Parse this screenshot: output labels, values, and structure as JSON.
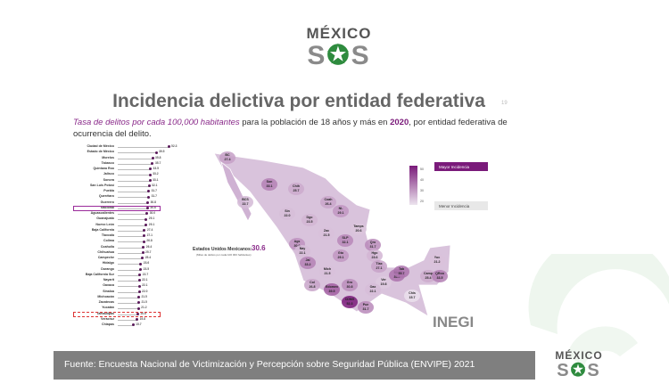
{
  "logo": {
    "top_text": "MÉXICO",
    "mark": "SOS",
    "colors": {
      "gray": "#8a8a8a",
      "green": "#2e8b3e"
    }
  },
  "slide": {
    "title": "Incidencia delictiva por entidad federativa",
    "page_number": "19",
    "subtitle_italic": "Tasa de delitos por cada 100,000 habitantes",
    "subtitle_mid": " para la población de 18 años y más en ",
    "subtitle_year": "2020",
    "subtitle_end": ", por entidad federativa de ocurrencia del delito."
  },
  "chart_data": [
    {
      "type": "dot",
      "categories": [
        "Ciudad de México",
        "Estado de México",
        "Morelos",
        "Tabasco",
        "Quintana Roo",
        "Jalisco",
        "Sonora",
        "San Luis Potosí",
        "Puebla",
        "Querétaro",
        "Guerrero",
        "Nacional",
        "Aguascalientes",
        "Guanajuato",
        "Nuevo León",
        "Baja California",
        "Tlaxcala",
        "Colima",
        "Coahuila",
        "Chihuahua",
        "Campeche",
        "Hidalgo",
        "Durango",
        "Baja California Sur",
        "Nayarit",
        "Oaxaca",
        "Sinaloa",
        "Michoacán",
        "Zacatecas",
        "Yucatán",
        "Tamaulipas",
        "Veracruz",
        "Chiapas"
      ],
      "values": [
        52.3,
        39.5,
        35.8,
        35.7,
        33.5,
        33.2,
        33.1,
        32.1,
        31.7,
        31.7,
        30.8,
        30.6,
        30.0,
        29.1,
        29.1,
        27.4,
        27.1,
        26.8,
        26.4,
        25.7,
        25.4,
        23.6,
        23.5,
        22.7,
        22.1,
        22.1,
        22.0,
        21.5,
        21.5,
        21.2,
        20.6,
        19.8,
        15.7
      ],
      "highlighted": [
        "Nacional",
        "Tamaulipas"
      ],
      "xlim": [
        0,
        55
      ]
    },
    {
      "type": "choropleth",
      "national_label": "Estados Unidos Mexicanos:",
      "national_value": "30.6",
      "national_note": "(Miles de delitos por cada 100 000 habitantes)",
      "legend": {
        "max_label": "Mayor Incidencia",
        "min_label": "Menor Incidencia",
        "ticks": [
          "50",
          "40",
          "30",
          "20"
        ],
        "colors": {
          "high": "#7a1a7a",
          "low": "#ece4ee"
        }
      },
      "states": [
        {
          "abbr": "BC",
          "value": "27.4"
        },
        {
          "abbr": "BCS",
          "value": "22.7"
        },
        {
          "abbr": "Son",
          "value": "33.1"
        },
        {
          "abbr": "Chih",
          "value": "25.7"
        },
        {
          "abbr": "Coah",
          "value": "26.4"
        },
        {
          "abbr": "NL",
          "value": "29.1"
        },
        {
          "abbr": "Sin",
          "value": "22.0"
        },
        {
          "abbr": "Dgo",
          "value": "23.5"
        },
        {
          "abbr": "Tamps",
          "value": "20.6"
        },
        {
          "abbr": "Zac",
          "value": "21.5"
        },
        {
          "abbr": "SLP",
          "value": "32.1"
        },
        {
          "abbr": "Ags",
          "value": "30.0"
        },
        {
          "abbr": "Nay",
          "value": "22.1"
        },
        {
          "abbr": "Jal",
          "value": "33.2"
        },
        {
          "abbr": "Gto",
          "value": "29.1"
        },
        {
          "abbr": "Qro",
          "value": "31.7"
        },
        {
          "abbr": "Hgo",
          "value": "23.6"
        },
        {
          "abbr": "Tlax",
          "value": "27.1"
        },
        {
          "abbr": "Mich",
          "value": "21.5"
        },
        {
          "abbr": "Col",
          "value": "26.8"
        },
        {
          "abbr": "Mor",
          "value": "35.8"
        },
        {
          "abbr": "Ver",
          "value": "19.8"
        },
        {
          "abbr": "Tab",
          "value": "35.7"
        },
        {
          "abbr": "Edomex",
          "value": "39.5"
        },
        {
          "abbr": "Gro",
          "value": "30.8"
        },
        {
          "abbr": "Oax",
          "value": "22.1"
        },
        {
          "abbr": "CDMX",
          "value": "52.3"
        },
        {
          "abbr": "Pue",
          "value": "31.7"
        },
        {
          "abbr": "Chis",
          "value": "15.7"
        },
        {
          "abbr": "Camp",
          "value": "25.4"
        },
        {
          "abbr": "Yuc",
          "value": "21.2"
        },
        {
          "abbr": "QRoo",
          "value": "33.5"
        }
      ]
    }
  ],
  "source_logo": "INEGI",
  "footer": "Fuente: Encuesta Nacional de Victimización y Percepción sobre Seguridad Pública (ENVIPE) 2021"
}
